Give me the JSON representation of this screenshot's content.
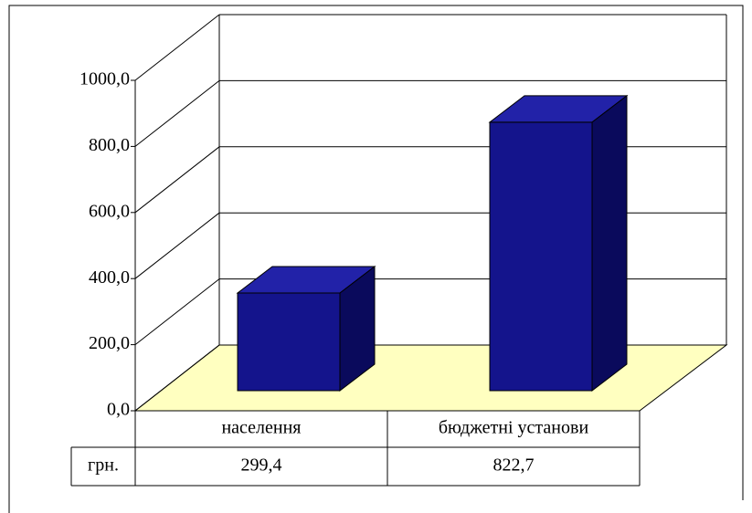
{
  "chart_data": {
    "type": "bar3d",
    "categories": [
      "населення",
      "бюджетні установи"
    ],
    "series": [
      {
        "name": "грн.",
        "color": "#14148c",
        "values": [
          299.4,
          822.7
        ],
        "value_labels": [
          "299,4",
          "822,7"
        ]
      }
    ],
    "ylim": [
      0,
      1000
    ],
    "yticks": [
      {
        "value": 0,
        "label": "0,0"
      },
      {
        "value": 200,
        "label": "200,0"
      },
      {
        "value": 400,
        "label": "400,0"
      },
      {
        "value": 600,
        "label": "600,0"
      },
      {
        "value": 800,
        "label": "800,0"
      },
      {
        "value": 1000,
        "label": "1000,0"
      }
    ],
    "grid": true,
    "data_table": true
  }
}
